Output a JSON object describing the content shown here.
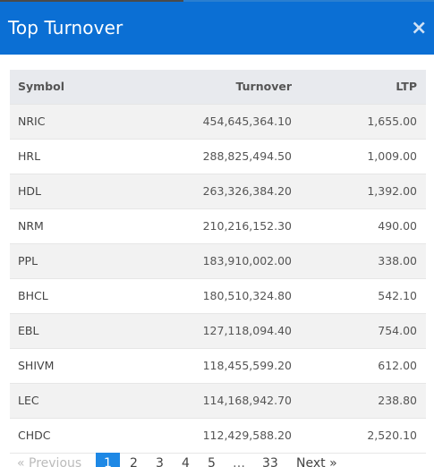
{
  "modal": {
    "title": "Top Turnover",
    "close_icon": "×"
  },
  "table": {
    "headers": {
      "symbol": "Symbol",
      "turnover": "Turnover",
      "ltp": "LTP"
    },
    "rows": [
      {
        "symbol": "NRIC",
        "turnover": "454,645,364.10",
        "ltp": "1,655.00"
      },
      {
        "symbol": "HRL",
        "turnover": "288,825,494.50",
        "ltp": "1,009.00"
      },
      {
        "symbol": "HDL",
        "turnover": "263,326,384.20",
        "ltp": "1,392.00"
      },
      {
        "symbol": "NRM",
        "turnover": "210,216,152.30",
        "ltp": "490.00"
      },
      {
        "symbol": "PPL",
        "turnover": "183,910,002.00",
        "ltp": "338.00"
      },
      {
        "symbol": "BHCL",
        "turnover": "180,510,324.80",
        "ltp": "542.10"
      },
      {
        "symbol": "EBL",
        "turnover": "127,118,094.40",
        "ltp": "754.00"
      },
      {
        "symbol": "SHIVM",
        "turnover": "118,455,599.20",
        "ltp": "612.00"
      },
      {
        "symbol": "LEC",
        "turnover": "114,168,942.70",
        "ltp": "238.80"
      },
      {
        "symbol": "CHDC",
        "turnover": "112,429,588.20",
        "ltp": "2,520.10"
      }
    ]
  },
  "pagination": {
    "previous": "« Previous",
    "pages": [
      "1",
      "2",
      "3",
      "4",
      "5"
    ],
    "ellipsis": "…",
    "last": "33",
    "next": "Next »",
    "current": "1"
  }
}
